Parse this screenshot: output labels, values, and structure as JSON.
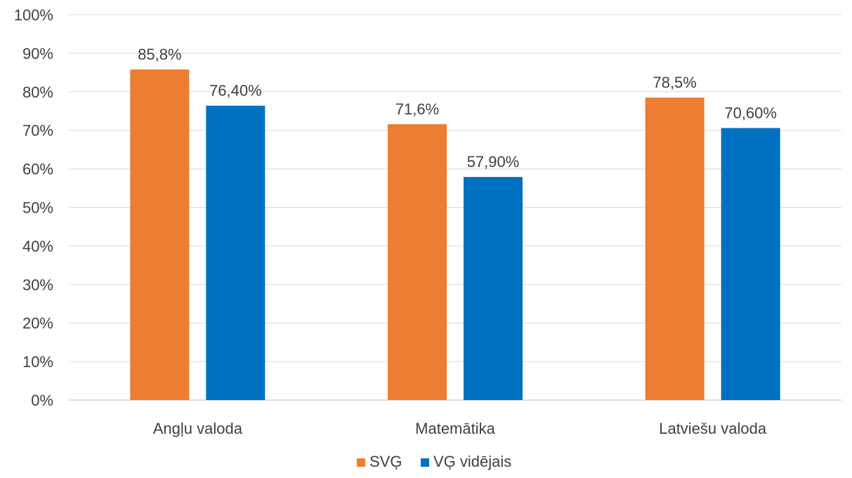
{
  "chart_data": {
    "type": "bar",
    "categories": [
      "Angļu valoda",
      "Matemātika",
      "Latviešu valoda"
    ],
    "series": [
      {
        "name": "SVĢ",
        "color": "#ed7d31",
        "values": [
          85.8,
          71.6,
          78.5
        ],
        "labels": [
          "85,8%",
          "71,6%",
          "78,5%"
        ]
      },
      {
        "name": "VĢ vidējais",
        "color": "#0070c0",
        "values": [
          76.4,
          57.9,
          70.6
        ],
        "labels": [
          "76,40%",
          "57,90%",
          "70,60%"
        ]
      }
    ],
    "ylim": [
      0,
      100
    ],
    "yticks": [
      0,
      10,
      20,
      30,
      40,
      50,
      60,
      70,
      80,
      90,
      100
    ],
    "ytick_labels": [
      "0%",
      "10%",
      "20%",
      "30%",
      "40%",
      "50%",
      "60%",
      "70%",
      "80%",
      "90%",
      "100%"
    ],
    "grid": true,
    "legend_position": "bottom"
  }
}
